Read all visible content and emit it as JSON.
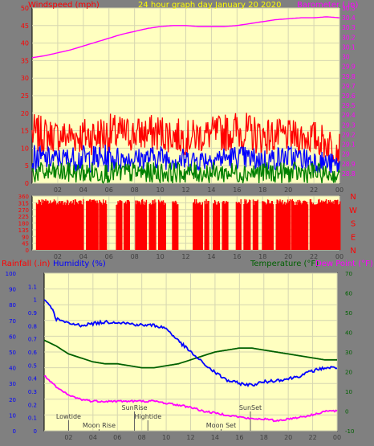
{
  "header": {
    "title": "24 hour graph day   January 20 2020",
    "left_label": "Windspeed (mph)",
    "right_label": "Barometer (.in)"
  },
  "mid": {
    "compass_letters": [
      "N",
      "W",
      "S",
      "E",
      "N"
    ]
  },
  "bottom": {
    "rain_label": "Rainfall (.in)",
    "humidity_label": "Humidity (%)",
    "temp_label": "Temperature (°F)",
    "dew_label": "Dew Point (°F)",
    "events": [
      {
        "label": "Lowtide",
        "hour": 2.0,
        "row": 1
      },
      {
        "label": "Moon Rise",
        "hour": 4.5,
        "row": 2
      },
      {
        "label": "SunRise",
        "hour": 7.4,
        "row": 0
      },
      {
        "label": "Hightide",
        "hour": 8.5,
        "row": 1
      },
      {
        "label": "Moon Set",
        "hour": 14.5,
        "row": 2
      },
      {
        "label": "SunSet",
        "hour": 16.9,
        "row": 0
      }
    ]
  },
  "colors": {
    "bg": "#808080",
    "plot_bg": "#ffffc0",
    "grid": "#d6d6b0",
    "axis_text": "#ff0000",
    "baro": "#ff00ff",
    "gust": "#ff0000",
    "wind_avg": "#0000ff",
    "wind_low": "#008000",
    "humidity": "#0000ff",
    "temperature": "#006000",
    "dewpoint": "#ff00ff",
    "title": "#ffff00",
    "label_dark": "#404040"
  },
  "chart_data": [
    {
      "type": "line",
      "title": "24 hour graph day   January 20 2020",
      "xlabel": "",
      "x_ticks": [
        "02",
        "04",
        "06",
        "08",
        "10",
        "12",
        "14",
        "16",
        "18",
        "20",
        "22",
        "00"
      ],
      "left_axis": {
        "label": "Windspeed (mph)",
        "ylim": [
          0,
          50
        ],
        "ticks": [
          0,
          5,
          10,
          15,
          20,
          25,
          30,
          35,
          40,
          45,
          50
        ]
      },
      "right_axis": {
        "label": "Barometer (.in)",
        "ylim": [
          28.7,
          30.5
        ],
        "ticks": [
          "28.8",
          "28.9",
          "29",
          "29.1",
          "29.2",
          "29.3",
          "29.4",
          "29.5",
          "29.6",
          "29.7",
          "29.8",
          "29.9",
          "30",
          "30.1",
          "30.2",
          "30.3",
          "30.4",
          "30.5"
        ]
      },
      "series": [
        {
          "name": "Barometer (.in)",
          "axis": "right",
          "kind": "line",
          "x": [
            0,
            1,
            2,
            3,
            4,
            5,
            6,
            7,
            8,
            9,
            10,
            11,
            12,
            13,
            14,
            15,
            16,
            17,
            18,
            19,
            20,
            21,
            22,
            23,
            24
          ],
          "values": [
            29.99,
            30.01,
            30.04,
            30.07,
            30.11,
            30.15,
            30.19,
            30.23,
            30.26,
            30.29,
            30.31,
            30.32,
            30.32,
            30.31,
            30.31,
            30.31,
            30.32,
            30.34,
            30.36,
            30.38,
            30.39,
            30.4,
            30.4,
            30.41,
            30.4
          ]
        },
        {
          "name": "Wind gust",
          "axis": "left",
          "kind": "noise",
          "x": [
            0,
            2,
            4,
            6,
            8,
            10,
            12,
            14,
            16,
            18,
            20,
            22,
            24
          ],
          "low": [
            8,
            9,
            8,
            8,
            9,
            9,
            8,
            9,
            9,
            8,
            9,
            8,
            5
          ],
          "high": [
            20,
            18,
            19,
            20,
            19,
            20,
            18,
            19,
            21,
            19,
            18,
            18,
            15
          ]
        },
        {
          "name": "Wind average",
          "axis": "left",
          "kind": "noise",
          "x": [
            0,
            2,
            4,
            6,
            8,
            10,
            12,
            14,
            16,
            18,
            20,
            22,
            24
          ],
          "low": [
            3,
            4,
            3,
            3,
            4,
            4,
            3,
            4,
            4,
            3,
            4,
            3,
            2
          ],
          "high": [
            11,
            10,
            11,
            11,
            10,
            11,
            10,
            10,
            11,
            10,
            11,
            10,
            8
          ]
        },
        {
          "name": "Wind low",
          "axis": "left",
          "kind": "noise",
          "x": [
            0,
            2,
            4,
            6,
            8,
            10,
            12,
            14,
            16,
            18,
            20,
            22,
            24
          ],
          "low": [
            0,
            0,
            0,
            0,
            0,
            0,
            0,
            0,
            0,
            0,
            0,
            0,
            0
          ],
          "high": [
            6,
            6,
            6,
            6,
            6,
            6,
            6,
            6,
            6,
            6,
            6,
            6,
            4
          ]
        }
      ]
    },
    {
      "type": "bar",
      "title": "",
      "x_ticks": [
        "02",
        "04",
        "06",
        "08",
        "10",
        "12",
        "14",
        "16",
        "18",
        "20",
        "22",
        "00"
      ],
      "left_axis": {
        "ylim": [
          0,
          360
        ],
        "ticks": [
          0,
          45,
          90,
          135,
          180,
          225,
          270,
          315,
          360
        ]
      },
      "right_axis": {
        "ticks": [
          "N",
          "W",
          "S",
          "E",
          "N"
        ]
      },
      "series": [
        {
          "name": "Wind direction",
          "direction_deg": 315,
          "gaps_hours": [
            [
              4.0,
              4.2
            ],
            [
              5.1,
              5.2
            ],
            [
              5.8,
              6.5
            ],
            [
              7.0,
              7.1
            ],
            [
              7.6,
              8.0
            ],
            [
              8.9,
              9.1
            ],
            [
              9.6,
              9.8
            ],
            [
              10.4,
              10.9
            ],
            [
              11.4,
              12.5
            ],
            [
              13.3,
              13.4
            ],
            [
              13.8,
              14.1
            ],
            [
              14.6,
              14.8
            ],
            [
              15.3,
              15.9
            ],
            [
              16.3,
              16.5
            ],
            [
              17.0,
              17.2
            ],
            [
              17.6,
              17.9
            ],
            [
              18.8,
              19.0
            ],
            [
              20.1,
              20.2
            ],
            [
              21.5,
              21.6
            ]
          ]
        }
      ]
    },
    {
      "type": "line",
      "title": "",
      "x_ticks": [
        "02",
        "04",
        "06",
        "08",
        "10",
        "12",
        "14",
        "16",
        "18",
        "20",
        "22",
        "00"
      ],
      "axes": {
        "rainfall": {
          "label": "Rainfall (.in)",
          "ylim": [
            0,
            1.2
          ],
          "ticks": [
            "0",
            "0.1",
            "0.2",
            "0.3",
            "0.4",
            "0.5",
            "0.6",
            "0.7",
            "0.8",
            "0.9",
            "1",
            "1.1"
          ]
        },
        "humidity": {
          "label": "Humidity (%)",
          "ylim": [
            0,
            100
          ],
          "ticks": [
            0,
            10,
            20,
            30,
            40,
            50,
            60,
            70,
            80,
            90,
            100
          ]
        },
        "temperature": {
          "label": "Temperature (°F) / Dew Point (°F)",
          "ylim": [
            -10,
            70
          ],
          "ticks": [
            -10,
            0,
            10,
            20,
            30,
            40,
            50,
            60,
            70
          ]
        }
      },
      "series": [
        {
          "name": "Humidity (%)",
          "axis": "humidity",
          "x": [
            0,
            0.5,
            1,
            2,
            3,
            4,
            5,
            6,
            7,
            8,
            9,
            10,
            11,
            12,
            13,
            14,
            15,
            16,
            17,
            18,
            19,
            20,
            21,
            22,
            23,
            24
          ],
          "values": [
            83,
            80,
            71,
            68,
            67,
            68,
            69,
            69,
            68,
            67,
            67,
            65,
            57,
            50,
            43,
            37,
            32,
            30,
            29,
            31,
            32,
            33,
            35,
            38,
            40,
            40
          ]
        },
        {
          "name": "Temperature (°F)",
          "axis": "temperature",
          "x": [
            0,
            1,
            2,
            3,
            4,
            5,
            6,
            7,
            8,
            9,
            10,
            11,
            12,
            13,
            14,
            15,
            16,
            17,
            18,
            19,
            20,
            21,
            22,
            23,
            24
          ],
          "values": [
            36,
            33,
            29,
            27,
            25,
            24,
            24,
            23,
            22,
            22,
            23,
            24,
            26,
            28,
            30,
            31,
            32,
            32,
            31,
            30,
            29,
            28,
            27,
            26,
            26
          ]
        },
        {
          "name": "Dew Point (°F)",
          "axis": "temperature",
          "x": [
            0,
            0.5,
            1,
            2,
            3,
            4,
            5,
            6,
            7,
            8,
            9,
            10,
            11,
            12,
            13,
            14,
            15,
            16,
            17,
            18,
            19,
            20,
            21,
            22,
            23,
            24
          ],
          "values": [
            18,
            15,
            12,
            8,
            6,
            5,
            5,
            5,
            5,
            5,
            5,
            4,
            3,
            2,
            0,
            -1,
            -2,
            -3,
            -4,
            -4,
            -5,
            -4,
            -3,
            -2,
            0,
            0
          ]
        },
        {
          "name": "Rainfall (.in)",
          "axis": "rainfall",
          "x": [
            0,
            24
          ],
          "values": [
            0,
            0
          ]
        }
      ]
    }
  ]
}
